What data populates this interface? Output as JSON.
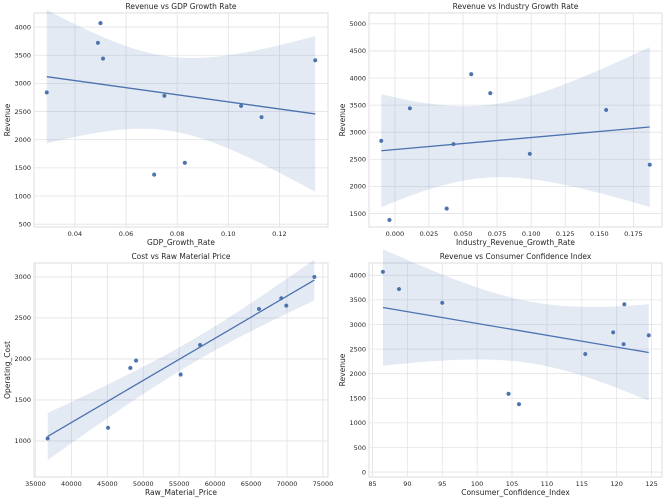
{
  "colors": {
    "marker": "#4c72b0",
    "line": "#4c72b0",
    "band": "#4c72b0",
    "grid": "#e3e3e8",
    "background": "#ffffff"
  },
  "chart_data": [
    {
      "type": "scatter",
      "regression": true,
      "ci_band": true,
      "grid": true,
      "title": "Revenue vs GDP Growth Rate",
      "xlabel": "GDP_Growth_Rate",
      "ylabel": "Revenue",
      "xlim": [
        0.024,
        0.139
      ],
      "ylim": [
        450,
        4250
      ],
      "xticks": [
        0.04,
        0.06,
        0.08,
        0.1,
        0.12
      ],
      "xtick_labels": [
        "0.04",
        "0.06",
        "0.08",
        "0.10",
        "0.12"
      ],
      "yticks": [
        500,
        1000,
        1500,
        2000,
        2500,
        3000,
        3500,
        4000
      ],
      "ytick_labels": [
        "500",
        "1000",
        "1500",
        "2000",
        "2500",
        "3000",
        "3500",
        "4000"
      ],
      "x": [
        0.029,
        0.049,
        0.05,
        0.051,
        0.071,
        0.075,
        0.083,
        0.105,
        0.113,
        0.134
      ],
      "y": [
        2840,
        3720,
        4070,
        3440,
        1380,
        2780,
        1590,
        2600,
        2400,
        3410
      ]
    },
    {
      "type": "scatter",
      "regression": true,
      "ci_band": true,
      "grid": true,
      "title": "Revenue vs Industry Growth Rate",
      "xlabel": "Industry_Revenue_Growth_Rate",
      "ylabel": "Revenue",
      "xlim": [
        -0.019,
        0.196
      ],
      "ylim": [
        1250,
        5200
      ],
      "xticks": [
        0,
        0.025,
        0.05,
        0.075,
        0.1,
        0.125,
        0.15,
        0.175
      ],
      "xtick_labels": [
        "0.000",
        "0.025",
        "0.050",
        "0.075",
        "0.100",
        "0.125",
        "0.150",
        "0.175"
      ],
      "yticks": [
        1500,
        2000,
        2500,
        3000,
        3500,
        4000,
        4500,
        5000
      ],
      "ytick_labels": [
        "1500",
        "2000",
        "2500",
        "3000",
        "3500",
        "4000",
        "4500",
        "5000"
      ],
      "x": [
        -0.01,
        -0.004,
        0.011,
        0.038,
        0.043,
        0.056,
        0.07,
        0.099,
        0.155,
        0.187
      ],
      "y": [
        2840,
        1380,
        3440,
        1590,
        2780,
        4070,
        3720,
        2600,
        3410,
        2400
      ]
    },
    {
      "type": "scatter",
      "regression": true,
      "ci_band": true,
      "grid": true,
      "title": "Cost vs Raw Material Price",
      "xlabel": "Raw_Material_Price",
      "ylabel": "Operating_Cost",
      "xlim": [
        34800,
        75700
      ],
      "ylim": [
        560,
        3170
      ],
      "xticks": [
        35000,
        40000,
        45000,
        50000,
        55000,
        60000,
        65000,
        70000,
        75000
      ],
      "xtick_labels": [
        "35000",
        "40000",
        "45000",
        "50000",
        "55000",
        "60000",
        "65000",
        "70000",
        "75000"
      ],
      "yticks": [
        1000,
        1500,
        2000,
        2500,
        3000
      ],
      "ytick_labels": [
        "1000",
        "1500",
        "2000",
        "2500",
        "3000"
      ],
      "x": [
        36700,
        45100,
        48200,
        49000,
        55200,
        57900,
        66100,
        69200,
        69900,
        73800
      ],
      "y": [
        1030,
        1160,
        1890,
        1980,
        1810,
        2170,
        2610,
        2740,
        2650,
        3000
      ]
    },
    {
      "type": "scatter",
      "regression": true,
      "ci_band": true,
      "grid": true,
      "title": "Revenue vs Consumer Confidence Index",
      "xlabel": "Consumer_Confidence_Index",
      "ylabel": "Revenue",
      "xlim": [
        84.5,
        126.5
      ],
      "ylim": [
        -100,
        4250
      ],
      "xticks": [
        85,
        90,
        95,
        100,
        105,
        110,
        115,
        120,
        125
      ],
      "xtick_labels": [
        "85",
        "90",
        "95",
        "100",
        "105",
        "110",
        "115",
        "120",
        "125"
      ],
      "yticks": [
        0,
        500,
        1000,
        1500,
        2000,
        2500,
        3000,
        3500,
        4000
      ],
      "ytick_labels": [
        "0",
        "500",
        "1000",
        "1500",
        "2000",
        "2500",
        "3000",
        "3500",
        "4000"
      ],
      "x": [
        86.5,
        88.8,
        95,
        104.5,
        106,
        115.5,
        119.5,
        121,
        121.1,
        124.6
      ],
      "y": [
        4070,
        3720,
        3440,
        1590,
        1380,
        2400,
        2840,
        2600,
        3410,
        2780
      ]
    }
  ]
}
